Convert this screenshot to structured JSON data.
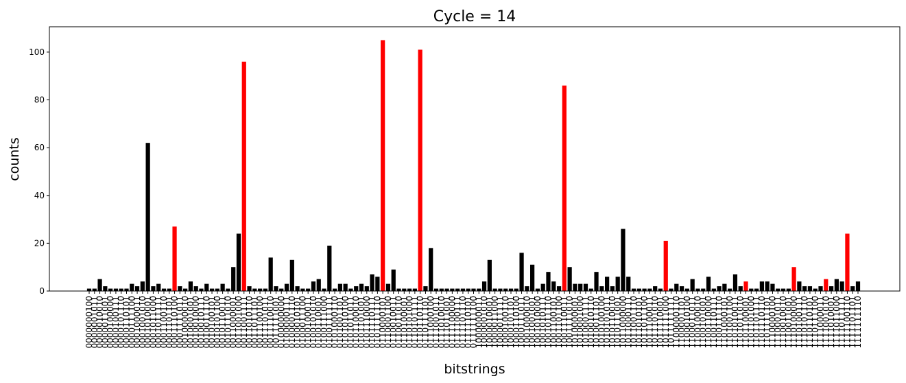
{
  "chart_data": {
    "type": "bar",
    "title": "Cycle  = 14",
    "x_label": "bitstrings",
    "y_label": "counts",
    "categories": [
      "0000000100",
      "0000001011",
      "0000010010",
      "0000011001",
      "0000100000",
      "0000100111",
      "0000101110",
      "0000110101",
      "0000111100",
      "0001000011",
      "0001001010",
      "0001010001",
      "0001011000",
      "0001011111",
      "0001100110",
      "0001101101",
      "0001110100",
      "0001111011",
      "0010000010",
      "0010001001",
      "0010010000",
      "0010010111",
      "0010011110",
      "0010100101",
      "0010101100",
      "0010110011",
      "0010111010",
      "0011000001",
      "0011001000",
      "0011001111",
      "0011010110",
      "0011011101",
      "0011100100",
      "0011101011",
      "0011110010",
      "0011111001",
      "0100000000",
      "0100000111",
      "0100001110",
      "0100010101",
      "0100011100",
      "0100100011",
      "0100101010",
      "0100110001",
      "0100111000",
      "0100111111",
      "0101000110",
      "0101001101",
      "0101010100",
      "0101011011",
      "0101100010",
      "0101101001",
      "0101110000",
      "0101110111",
      "0101111110",
      "0110000101",
      "0110001100",
      "0110010011",
      "0110011010",
      "0110100001",
      "0110101000",
      "0110101111",
      "0110110110",
      "0110111101",
      "0111000100",
      "0111001011",
      "0111010010",
      "0111011001",
      "0111100000",
      "0111100111",
      "0111101110",
      "0111110101",
      "0111111100",
      "1000000011",
      "1000001010",
      "1000010001",
      "1000011000",
      "1000011111",
      "1000100110",
      "1000101101",
      "1000110100",
      "1000111011",
      "1001000010",
      "1001001001",
      "1001010000",
      "1001010111",
      "1001011110",
      "1001100101",
      "1001101100",
      "1001110011",
      "1001111010",
      "1010000001",
      "1010001000",
      "1010001111",
      "1010010110",
      "1010011101",
      "1010100100",
      "1010101011",
      "1010110010",
      "1010111001",
      "1011000000",
      "1011000111",
      "1011001110",
      "1011010101",
      "1011011100",
      "1011100011",
      "1011101010",
      "1011110001",
      "1011111000",
      "1011111111",
      "1100000110",
      "1100001101",
      "1100010100",
      "1100011011",
      "1100100010",
      "1100101001",
      "1100110000",
      "1100110111",
      "1100111110",
      "1101000101",
      "1101001100",
      "1101010011",
      "1101011010",
      "1101100001",
      "1101101000",
      "1101101111",
      "1101110110",
      "1101111101",
      "1110000100",
      "1110001011",
      "1110010010",
      "1110011001",
      "1110100000",
      "1110100111",
      "1110101110",
      "1110110101",
      "1110111100",
      "1111000011",
      "1111001010",
      "1111010001",
      "1111011000",
      "1111011111",
      "1111100110",
      "1111101101",
      "1111111110"
    ],
    "values": [
      1,
      1,
      5,
      2,
      1,
      1,
      1,
      1,
      3,
      2,
      4,
      62,
      2,
      3,
      1,
      1,
      27,
      2,
      1,
      4,
      2,
      1,
      3,
      1,
      1,
      3,
      1,
      10,
      24,
      96,
      2,
      1,
      1,
      1,
      14,
      2,
      1,
      3,
      13,
      2,
      1,
      1,
      4,
      5,
      1,
      19,
      1,
      3,
      3,
      1,
      2,
      3,
      2,
      7,
      6,
      105,
      3,
      9,
      1,
      1,
      1,
      1,
      101,
      2,
      18,
      1,
      1,
      1,
      1,
      1,
      1,
      1,
      1,
      1,
      4,
      13,
      1,
      1,
      1,
      1,
      1,
      16,
      2,
      11,
      1,
      3,
      8,
      4,
      2,
      86,
      10,
      3,
      3,
      3,
      1,
      8,
      2,
      6,
      2,
      6,
      26,
      6,
      1,
      1,
      1,
      1,
      2,
      1,
      21,
      1,
      3,
      2,
      1,
      5,
      1,
      1,
      6,
      1,
      2,
      3,
      1,
      7,
      2,
      4,
      1,
      1,
      4,
      4,
      3,
      1,
      1,
      1,
      10,
      4,
      2,
      2,
      1,
      2,
      5,
      2,
      5,
      4,
      24,
      2,
      4
    ],
    "colors": [
      "black",
      "black",
      "black",
      "black",
      "black",
      "black",
      "black",
      "black",
      "black",
      "black",
      "black",
      "black",
      "black",
      "black",
      "black",
      "black",
      "red",
      "black",
      "black",
      "black",
      "black",
      "black",
      "black",
      "black",
      "black",
      "black",
      "black",
      "black",
      "black",
      "red",
      "black",
      "black",
      "black",
      "black",
      "black",
      "black",
      "black",
      "black",
      "black",
      "black",
      "black",
      "black",
      "black",
      "black",
      "black",
      "black",
      "black",
      "black",
      "black",
      "black",
      "black",
      "black",
      "black",
      "black",
      "black",
      "red",
      "black",
      "black",
      "black",
      "black",
      "black",
      "black",
      "red",
      "black",
      "black",
      "black",
      "black",
      "black",
      "black",
      "black",
      "black",
      "black",
      "black",
      "black",
      "black",
      "black",
      "black",
      "black",
      "black",
      "black",
      "black",
      "black",
      "black",
      "black",
      "black",
      "black",
      "black",
      "black",
      "black",
      "red",
      "black",
      "black",
      "black",
      "black",
      "black",
      "black",
      "black",
      "black",
      "black",
      "black",
      "black",
      "black",
      "black",
      "black",
      "black",
      "black",
      "black",
      "black",
      "red",
      "black",
      "black",
      "black",
      "black",
      "black",
      "black",
      "black",
      "black",
      "black",
      "black",
      "black",
      "black",
      "black",
      "black",
      "red",
      "black",
      "black",
      "black",
      "black",
      "black",
      "black",
      "black",
      "black",
      "red",
      "black",
      "black",
      "black",
      "black",
      "black",
      "red",
      "black",
      "black",
      "black",
      "red",
      "black",
      "black"
    ],
    "ylim": [
      0,
      110.6
    ],
    "yticks": [
      0,
      20,
      40,
      60,
      80,
      100
    ]
  }
}
